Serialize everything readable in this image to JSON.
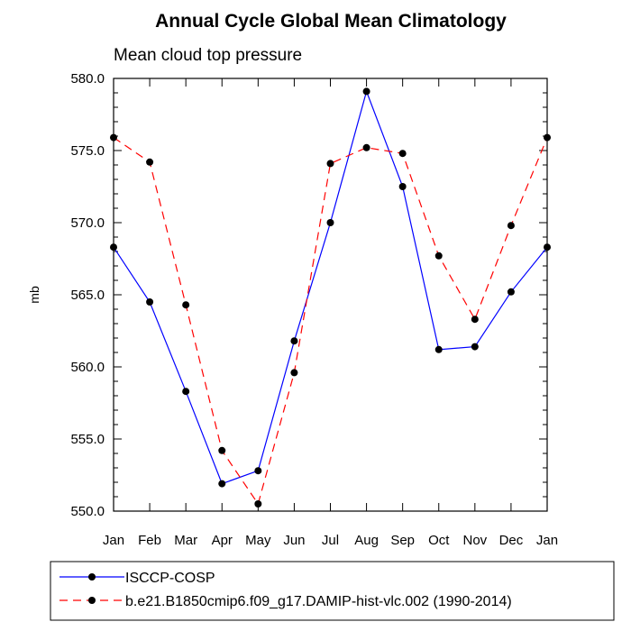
{
  "chart_data": {
    "type": "line",
    "title": "Annual Cycle Global Mean Climatology",
    "subtitle": "Mean cloud top pressure",
    "xlabel": "",
    "ylabel": "mb",
    "categories": [
      "Jan",
      "Feb",
      "Mar",
      "Apr",
      "May",
      "Jun",
      "Jul",
      "Aug",
      "Sep",
      "Oct",
      "Nov",
      "Dec",
      "Jan"
    ],
    "ylim": [
      550.0,
      580.0
    ],
    "yticks": [
      "550.0",
      "555.0",
      "560.0",
      "565.0",
      "570.0",
      "575.0",
      "580.0"
    ],
    "ytick_values": [
      550,
      555,
      560,
      565,
      570,
      575,
      580
    ],
    "series": [
      {
        "name": "ISCCP-COSP",
        "color": "#0000ff",
        "dash": "solid",
        "values": [
          568.3,
          564.5,
          558.3,
          551.9,
          552.8,
          561.8,
          570.0,
          579.1,
          572.5,
          561.2,
          561.4,
          565.2,
          568.3
        ]
      },
      {
        "name": "b.e21.B1850cmip6.f09_g17.DAMIP-hist-vlc.002 (1990-2014)",
        "color": "#ff0000",
        "dash": "dashed",
        "values": [
          575.9,
          574.2,
          564.3,
          554.2,
          550.5,
          559.6,
          574.1,
          575.2,
          574.8,
          567.7,
          563.3,
          569.8,
          575.9
        ]
      }
    ],
    "grid": false,
    "legend_position": "bottom"
  }
}
